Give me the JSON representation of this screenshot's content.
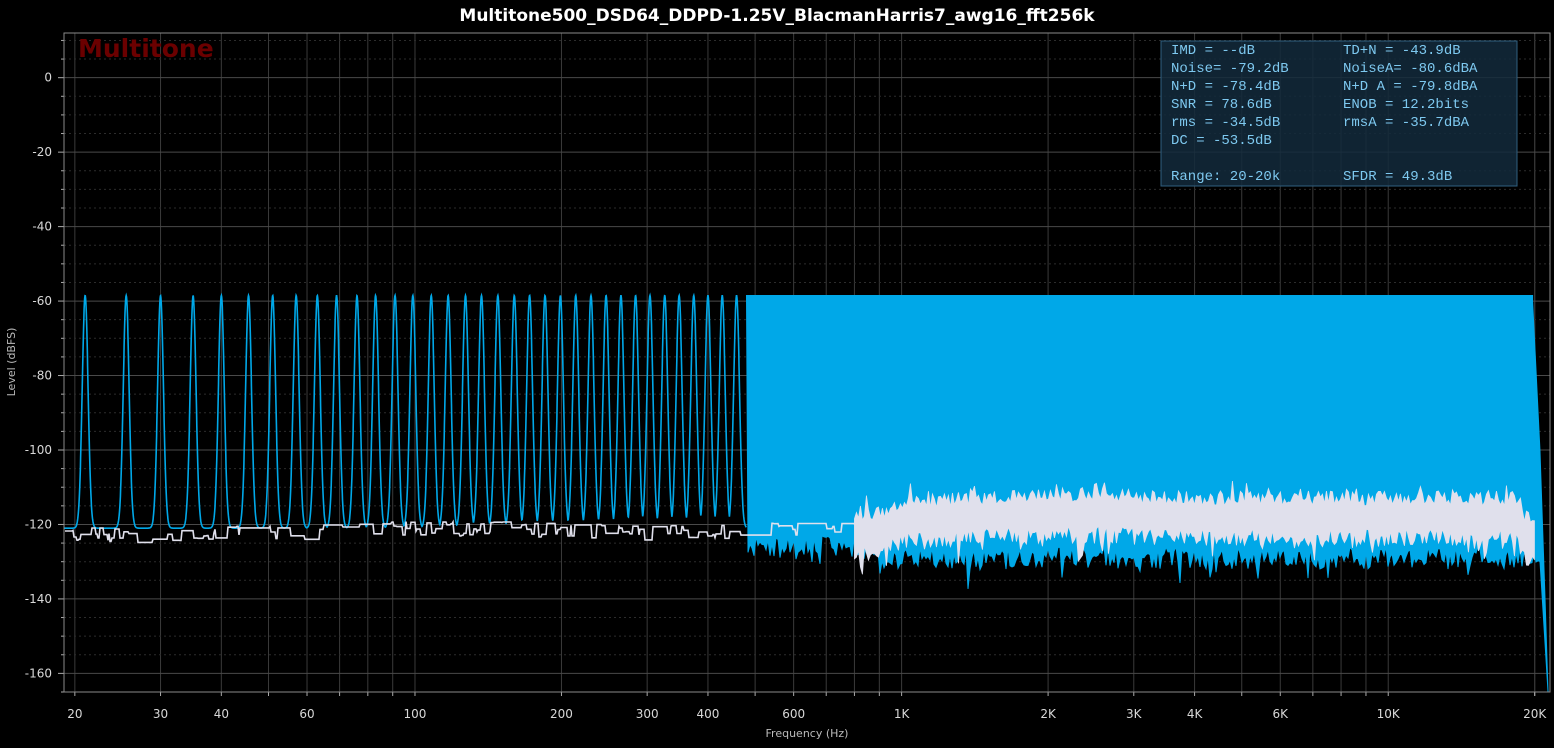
{
  "chart_data": {
    "type": "line",
    "title": "Multitone500_DSD64_DDPD-1.25V_BlacmanHarris7_awg16_fft256k",
    "xlabel": "Frequency (Hz)",
    "ylabel": "Level (dBFS)",
    "x_scale": "log",
    "xlim": [
      19,
      21500
    ],
    "ylim": [
      -165,
      12
    ],
    "x_ticks": [
      {
        "value": 20,
        "label": "20"
      },
      {
        "value": 30,
        "label": "30"
      },
      {
        "value": 40,
        "label": "40"
      },
      {
        "value": 60,
        "label": "60"
      },
      {
        "value": 100,
        "label": "100"
      },
      {
        "value": 200,
        "label": "200"
      },
      {
        "value": 300,
        "label": "300"
      },
      {
        "value": 400,
        "label": "400"
      },
      {
        "value": 600,
        "label": "600"
      },
      {
        "value": 1000,
        "label": "1K"
      },
      {
        "value": 2000,
        "label": "2K"
      },
      {
        "value": 3000,
        "label": "3K"
      },
      {
        "value": 4000,
        "label": "4K"
      },
      {
        "value": 6000,
        "label": "6K"
      },
      {
        "value": 10000,
        "label": "10K"
      },
      {
        "value": 20000,
        "label": "20K"
      }
    ],
    "y_ticks": [
      0,
      -20,
      -40,
      -60,
      -80,
      -100,
      -120,
      -140,
      -160
    ],
    "grid": true,
    "series": [
      {
        "color": "#00a8e8",
        "description_points": {
          "tone_level_db": -58.5,
          "dense_region_start_hz": 480,
          "dense_region_end_hz": 19800,
          "floor_db": -121,
          "rolloff_end": [
            [
              19800,
              -60
            ],
            [
              20500,
              -100
            ],
            [
              21000,
              -140
            ],
            [
              21300,
              -165
            ]
          ],
          "low_tone_freqs": [
            21,
            25.5,
            30,
            35,
            40,
            45.5,
            51,
            57,
            63,
            69,
            76,
            83,
            91,
            99,
            108,
            117,
            127,
            137,
            148,
            160,
            172,
            185,
            199,
            214,
            230,
            247,
            265,
            284,
            304,
            326,
            349,
            374,
            400,
            428,
            458
          ]
        }
      },
      {
        "color": "#e0e0ec",
        "description_points": {
          "points": [
            [
              19,
              -122.5
            ],
            [
              30,
              -123.5
            ],
            [
              40,
              -122.5
            ],
            [
              60,
              -122
            ],
            [
              100,
              -121
            ],
            [
              200,
              -121.5
            ],
            [
              300,
              -122.5
            ],
            [
              500,
              -121.5
            ],
            [
              700,
              -121
            ],
            [
              900,
              -121
            ],
            [
              1000,
              -118
            ],
            [
              2000,
              -116
            ],
            [
              4000,
              -117
            ],
            [
              10000,
              -117
            ],
            [
              18000,
              -117
            ],
            [
              20000,
              -125
            ]
          ],
          "noise_band_top_db": -113,
          "noise_band_bottom_db": -127
        }
      }
    ]
  },
  "watermark": "Multitone",
  "stats": {
    "rows": [
      [
        "IMD  =    --dB",
        "TD+N  = -43.9dB"
      ],
      [
        "Noise= -79.2dB",
        "NoiseA= -80.6dBA"
      ],
      [
        "N+D  = -78.4dB",
        "N+D A = -79.8dBA"
      ],
      [
        "SNR  =  78.6dB",
        "ENOB  =  12.2bits"
      ],
      [
        "rms  = -34.5dB",
        "rmsA  = -35.7dBA"
      ],
      [
        "DC   = -53.5dB",
        ""
      ],
      [
        "",
        ""
      ],
      [
        "Range:  20-20k",
        "SFDR  =  49.3dB"
      ]
    ]
  },
  "colors": {
    "background": "#000000",
    "grid": "#3a3a3a",
    "tone_series": "#00a8e8",
    "noise_series": "#e0e0ec",
    "stats_text": "#7ec9f0",
    "stats_box": "#132a3c",
    "watermark": "#6b0000"
  }
}
